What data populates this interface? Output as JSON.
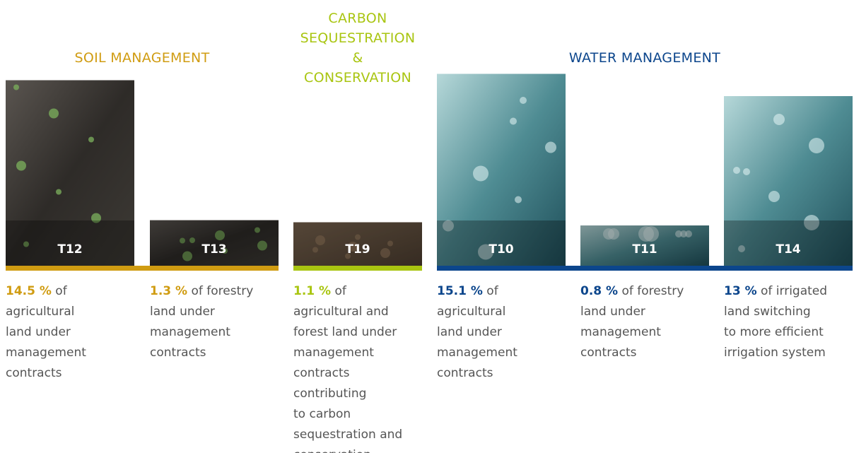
{
  "groups": [
    {
      "title": "SOIL MANAGEMENT",
      "color": "#d09c12",
      "items": [
        {
          "code": "T12",
          "value": 14.5,
          "value_label": "14.5 %",
          "text": " of\nagricultural\nland under\nmanagement\ncontracts"
        },
        {
          "code": "T13",
          "value": 1.3,
          "value_label": "1.3 %",
          "text": " of forestry\nland under\nmanagement\ncontracts"
        }
      ]
    },
    {
      "title": "CARBON\nSEQUESTRATION &\nCONSERVATION",
      "color": "#a9c511",
      "items": [
        {
          "code": "T19",
          "value": 1.1,
          "value_label": "1.1 %",
          "text": " of\nagricultural and\nforest land under\nmanagement\ncontracts\ncontributing\nto carbon\nsequestration and\nconservation"
        }
      ]
    },
    {
      "title": "WATER MANAGEMENT",
      "color": "#0c468c",
      "items": [
        {
          "code": "T10",
          "value": 15.1,
          "value_label": "15.1 %",
          "text": " of\nagricultural\nland under\nmanagement\ncontracts"
        },
        {
          "code": "T11",
          "value": 0.8,
          "value_label": "0.8 %",
          "text": " of forestry\nland under\nmanagement\ncontracts"
        },
        {
          "code": "T14",
          "value": 13,
          "value_label": "13 %",
          "text": " of irrigated\nland switching\nto more efficient\nirrigation system"
        }
      ]
    }
  ]
}
